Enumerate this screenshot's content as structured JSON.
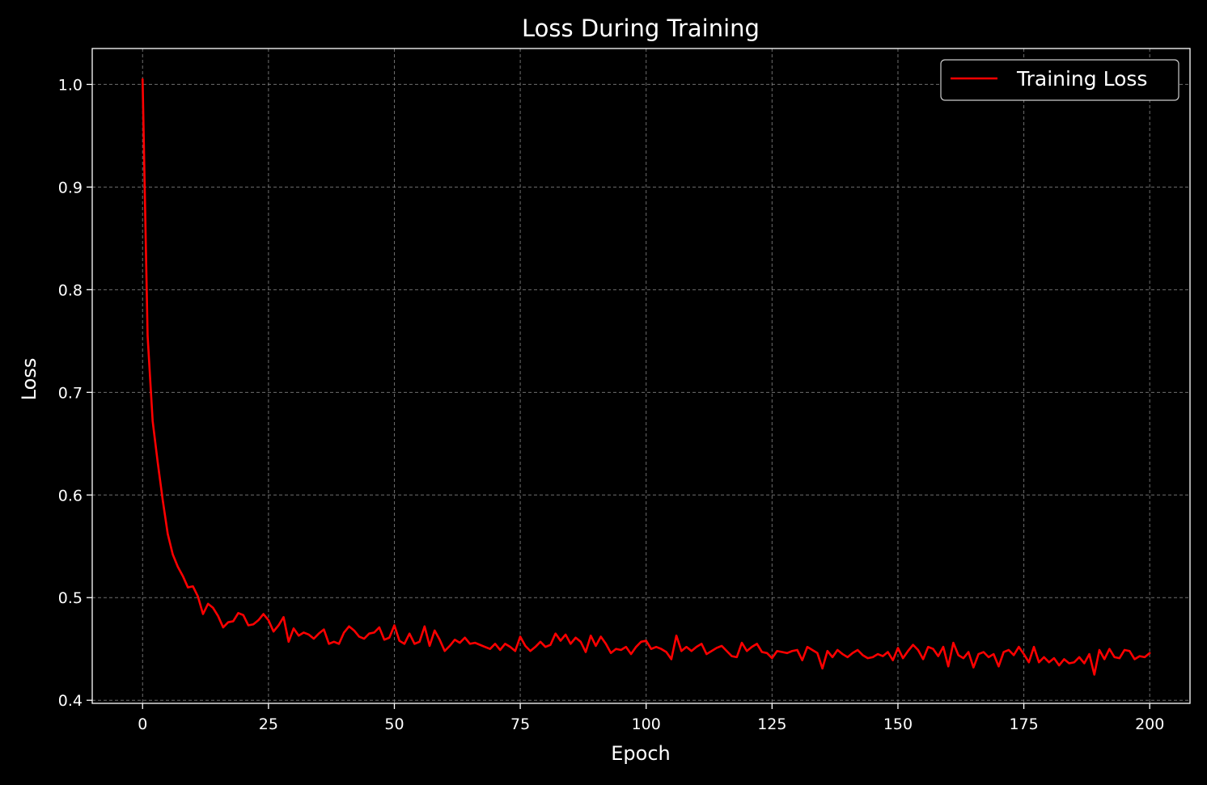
{
  "chart_data": {
    "type": "line",
    "title": "Loss During Training",
    "xlabel": "Epoch",
    "ylabel": "Loss",
    "xlim": [
      -10,
      208
    ],
    "ylim": [
      0.397,
      1.035
    ],
    "xticks": [
      0,
      25,
      50,
      75,
      100,
      125,
      150,
      175,
      200
    ],
    "yticks": [
      0.4,
      0.5,
      0.6,
      0.7,
      0.8,
      0.9,
      1.0
    ],
    "xtick_labels": [
      "0",
      "25",
      "50",
      "75",
      "100",
      "125",
      "150",
      "175",
      "200"
    ],
    "ytick_labels": [
      "0.4",
      "0.5",
      "0.6",
      "0.7",
      "0.8",
      "0.9",
      "1.0"
    ],
    "grid": true,
    "legend": "top-right",
    "background_color": "#000000",
    "axis_color": "#ffffff",
    "grid_color": "#8a8a8a",
    "series": [
      {
        "name": "Training Loss",
        "color": "#ff0000",
        "values": [
          1.005,
          0.755,
          0.672,
          0.632,
          0.595,
          0.562,
          0.542,
          0.53,
          0.521,
          0.51,
          0.511,
          0.501,
          0.484,
          0.494,
          0.49,
          0.482,
          0.471,
          0.476,
          0.477,
          0.485,
          0.483,
          0.473,
          0.474,
          0.478,
          0.484,
          0.478,
          0.467,
          0.473,
          0.481,
          0.457,
          0.47,
          0.463,
          0.466,
          0.464,
          0.46,
          0.465,
          0.469,
          0.455,
          0.457,
          0.455,
          0.466,
          0.472,
          0.468,
          0.462,
          0.46,
          0.465,
          0.466,
          0.471,
          0.459,
          0.461,
          0.473,
          0.458,
          0.455,
          0.465,
          0.455,
          0.457,
          0.472,
          0.453,
          0.468,
          0.459,
          0.448,
          0.453,
          0.459,
          0.456,
          0.461,
          0.455,
          0.456,
          0.454,
          0.452,
          0.45,
          0.455,
          0.449,
          0.455,
          0.452,
          0.448,
          0.462,
          0.453,
          0.448,
          0.452,
          0.457,
          0.452,
          0.454,
          0.465,
          0.458,
          0.464,
          0.455,
          0.461,
          0.457,
          0.447,
          0.463,
          0.453,
          0.462,
          0.455,
          0.446,
          0.45,
          0.449,
          0.452,
          0.445,
          0.452,
          0.457,
          0.458,
          0.45,
          0.452,
          0.45,
          0.447,
          0.44,
          0.463,
          0.448,
          0.452,
          0.448,
          0.452,
          0.455,
          0.445,
          0.448,
          0.451,
          0.453,
          0.448,
          0.443,
          0.442,
          0.456,
          0.448,
          0.452,
          0.455,
          0.447,
          0.446,
          0.441,
          0.448,
          0.447,
          0.446,
          0.448,
          0.449,
          0.439,
          0.452,
          0.449,
          0.446,
          0.431,
          0.448,
          0.442,
          0.449,
          0.445,
          0.442,
          0.446,
          0.449,
          0.444,
          0.441,
          0.442,
          0.445,
          0.443,
          0.447,
          0.439,
          0.451,
          0.441,
          0.448,
          0.454,
          0.449,
          0.44,
          0.452,
          0.45,
          0.443,
          0.452,
          0.433,
          0.456,
          0.444,
          0.441,
          0.447,
          0.432,
          0.445,
          0.447,
          0.442,
          0.445,
          0.433,
          0.447,
          0.449,
          0.444,
          0.452,
          0.445,
          0.437,
          0.452,
          0.437,
          0.442,
          0.437,
          0.441,
          0.434,
          0.44,
          0.436,
          0.437,
          0.442,
          0.436,
          0.445,
          0.425,
          0.449,
          0.44,
          0.45,
          0.442,
          0.441,
          0.449,
          0.448,
          0.44,
          0.443,
          0.442,
          0.446
        ]
      }
    ]
  }
}
